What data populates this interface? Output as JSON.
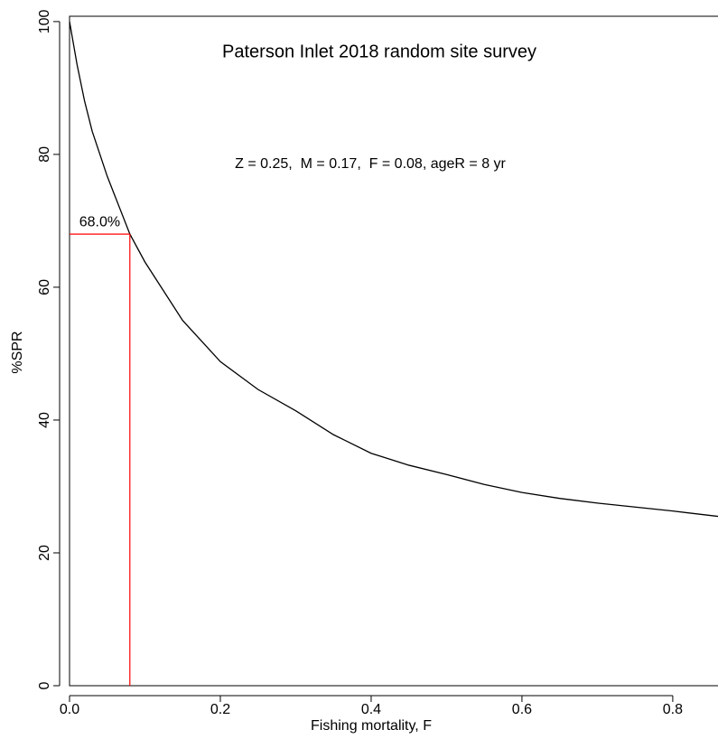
{
  "chart_data": {
    "type": "line",
    "title": "Paterson Inlet 2018 random site survey",
    "annotation": "Z = 0.25,  M = 0.17,  F = 0.08, ageR = 8 yr",
    "x_label": "Fishing mortality, F",
    "y_label": "%SPR",
    "x": [
      0,
      0.01,
      0.02,
      0.03,
      0.05,
      0.08,
      0.1,
      0.15,
      0.2,
      0.25,
      0.3,
      0.35,
      0.4,
      0.45,
      0.5,
      0.55,
      0.6,
      0.65,
      0.7,
      0.75,
      0.8,
      0.86
    ],
    "series": [
      {
        "name": "%SPR",
        "color": "#000000",
        "values": [
          100,
          93.5,
          88,
          83.5,
          76.7,
          68,
          63.8,
          55,
          48.8,
          44.6,
          41.4,
          37.8,
          35,
          33.2,
          31.8,
          30.3,
          29.1,
          28.2,
          27.5,
          26.9,
          26.3,
          25.5
        ]
      }
    ],
    "reference": {
      "x": 0.08,
      "y": 68,
      "label": "68.0%",
      "color": "#ff0000"
    },
    "xlim": [
      0,
      0.86
    ],
    "ylim": [
      0,
      100.8
    ],
    "xticks": [
      {
        "value": 0,
        "label": "0.0"
      },
      0.2,
      0.4,
      0.6,
      0.8
    ],
    "yticks": [
      0,
      20,
      40,
      60,
      80,
      100
    ]
  }
}
